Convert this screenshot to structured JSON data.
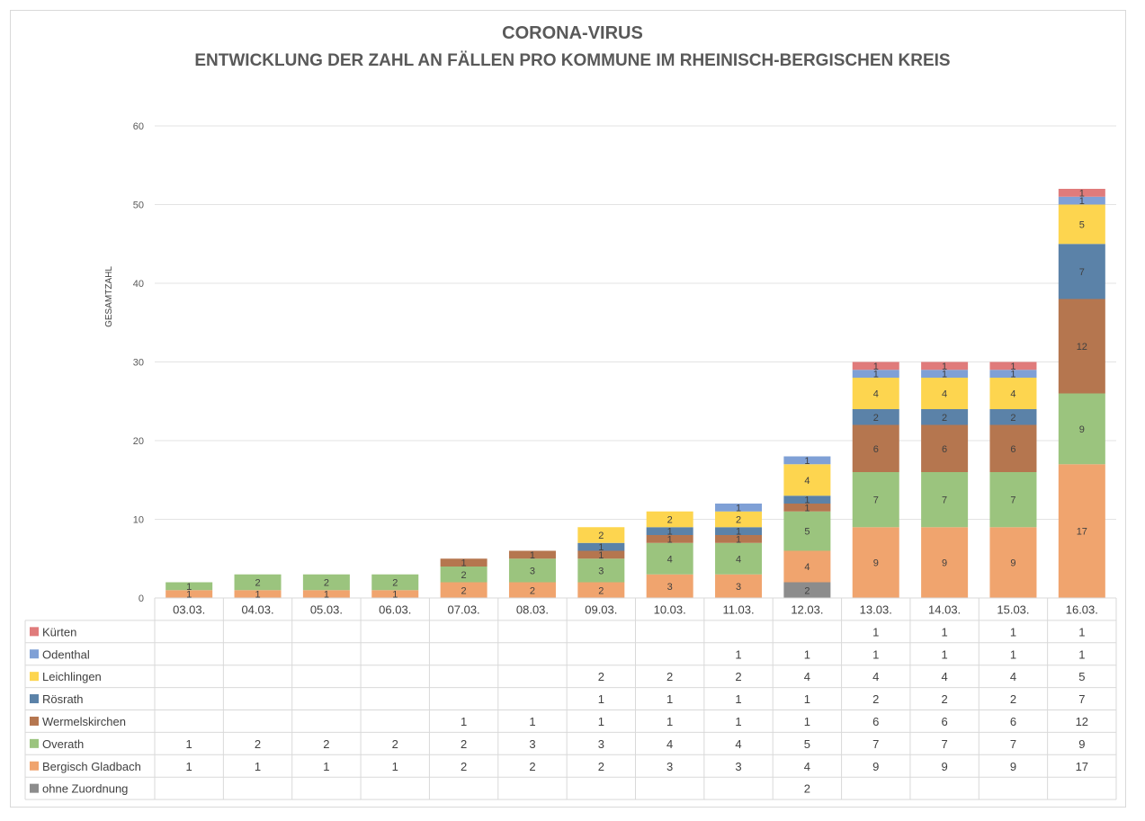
{
  "chart_data": {
    "type": "bar",
    "stacked": true,
    "title": "CORONA-VIRUS",
    "subtitle": "ENTWICKLUNG DER ZAHL AN FÄLLEN PRO KOMMUNE IM RHEINISCH-BERGISCHEN KREIS",
    "xlabel": "",
    "ylabel": "GESAMTZAHL",
    "ylim": [
      0,
      60
    ],
    "yticks": [
      0,
      10,
      20,
      30,
      40,
      50,
      60
    ],
    "grid": true,
    "legend": "data-table-below",
    "categories": [
      "03.03.",
      "04.03.",
      "05.03.",
      "06.03.",
      "07.03.",
      "08.03.",
      "09.03.",
      "10.03.",
      "11.03.",
      "12.03.",
      "13.03.",
      "14.03.",
      "15.03.",
      "16.03."
    ],
    "series": [
      {
        "name": "ohne Zuordnung",
        "color": "#8c8c8c",
        "values": [
          null,
          null,
          null,
          null,
          null,
          null,
          null,
          null,
          null,
          2,
          null,
          null,
          null,
          null
        ]
      },
      {
        "name": "Bergisch Gladbach",
        "color": "#f0a46e",
        "values": [
          1,
          1,
          1,
          1,
          2,
          2,
          2,
          3,
          3,
          4,
          9,
          9,
          9,
          17
        ]
      },
      {
        "name": "Overath",
        "color": "#9bc47e",
        "values": [
          1,
          2,
          2,
          2,
          2,
          3,
          3,
          4,
          4,
          5,
          7,
          7,
          7,
          9
        ]
      },
      {
        "name": "Wermelskirchen",
        "color": "#b5764f",
        "values": [
          null,
          null,
          null,
          null,
          1,
          1,
          1,
          1,
          1,
          1,
          6,
          6,
          6,
          12
        ]
      },
      {
        "name": "Rösrath",
        "color": "#5b82a8",
        "values": [
          null,
          null,
          null,
          null,
          null,
          null,
          1,
          1,
          1,
          1,
          2,
          2,
          2,
          7
        ]
      },
      {
        "name": "Leichlingen",
        "color": "#fdd54f",
        "values": [
          null,
          null,
          null,
          null,
          null,
          null,
          2,
          2,
          2,
          4,
          4,
          4,
          4,
          5
        ]
      },
      {
        "name": "Odenthal",
        "color": "#7fa0d6",
        "values": [
          null,
          null,
          null,
          null,
          null,
          null,
          null,
          null,
          1,
          1,
          1,
          1,
          1,
          1
        ]
      },
      {
        "name": "Kürten",
        "color": "#e07b7b",
        "values": [
          null,
          null,
          null,
          null,
          null,
          null,
          null,
          null,
          null,
          null,
          1,
          1,
          1,
          1
        ]
      }
    ],
    "table_row_order": [
      "Kürten",
      "Odenthal",
      "Leichlingen",
      "Rösrath",
      "Wermelskirchen",
      "Overath",
      "Bergisch Gladbach",
      "ohne Zuordnung"
    ]
  }
}
